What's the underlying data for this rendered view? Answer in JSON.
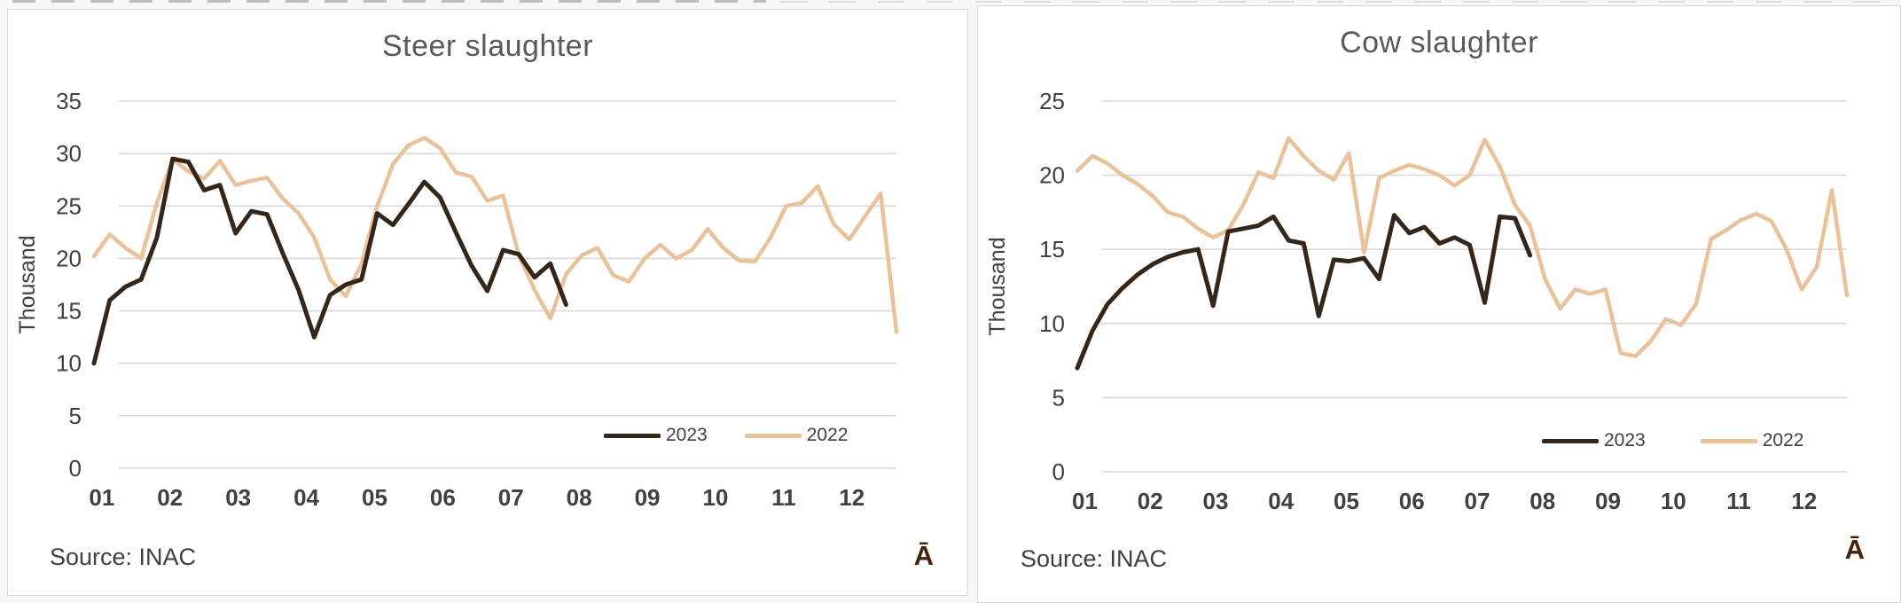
{
  "chart_data": [
    {
      "type": "line",
      "title": "Steer slaughter",
      "ylabel": "Thousand",
      "source": "Source: INAC",
      "watermark": "Ā",
      "ylim": [
        0,
        35
      ],
      "y_ticks": [
        0,
        5,
        10,
        15,
        20,
        25,
        30,
        35
      ],
      "x_tick_labels": [
        "01",
        "02",
        "03",
        "04",
        "05",
        "06",
        "07",
        "08",
        "09",
        "10",
        "11",
        "12"
      ],
      "weeks_total": 52,
      "grid": true,
      "legend_position": "bottom-right-inside",
      "colors": {
        "grid": "#d9d9d9",
        "axis_text": "#404040",
        "title_text": "#595959"
      },
      "series": [
        {
          "name": "2023",
          "color": "#342619",
          "width": 5,
          "values": [
            10.0,
            16.0,
            17.3,
            18.0,
            22.0,
            29.5,
            29.2,
            26.5,
            27.0,
            22.4,
            24.5,
            24.2,
            20.5,
            17.0,
            12.5,
            16.5,
            17.5,
            18.0,
            24.3,
            23.2,
            25.2,
            27.3,
            25.8,
            22.5,
            19.3,
            16.9,
            20.8,
            20.4,
            18.2,
            19.5,
            15.6
          ]
        },
        {
          "name": "2022",
          "color": "#eac299",
          "width": 4.5,
          "values": [
            20.2,
            22.3,
            21.0,
            20.0,
            25.3,
            29.4,
            28.3,
            27.6,
            29.3,
            27.0,
            27.4,
            27.7,
            25.7,
            24.3,
            22.0,
            18.0,
            16.4,
            19.5,
            25.0,
            29.0,
            30.8,
            31.5,
            30.5,
            28.2,
            27.8,
            25.5,
            26.0,
            20.3,
            17.0,
            14.3,
            18.5,
            20.3,
            21.0,
            18.4,
            17.8,
            20.0,
            21.3,
            20.0,
            20.8,
            22.8,
            21.0,
            19.8,
            19.7,
            22.0,
            25.0,
            25.3,
            26.9,
            23.3,
            21.8,
            24.0,
            26.2,
            13.0
          ]
        }
      ]
    },
    {
      "type": "line",
      "title": "Cow slaughter",
      "ylabel": "Thousand",
      "source": "Source: INAC",
      "watermark": "Ā",
      "ylim": [
        0,
        25
      ],
      "y_ticks": [
        0,
        5,
        10,
        15,
        20,
        25
      ],
      "x_tick_labels": [
        "01",
        "02",
        "03",
        "04",
        "05",
        "06",
        "07",
        "08",
        "09",
        "10",
        "11",
        "12"
      ],
      "weeks_total": 52,
      "grid": true,
      "legend_position": "bottom-right-inside",
      "colors": {
        "grid": "#d9d9d9",
        "axis_text": "#404040",
        "title_text": "#595959"
      },
      "series": [
        {
          "name": "2023",
          "color": "#342619",
          "width": 5,
          "values": [
            7.0,
            9.5,
            11.3,
            12.4,
            13.3,
            14.0,
            14.5,
            14.8,
            15.0,
            11.2,
            16.2,
            16.4,
            16.6,
            17.2,
            15.6,
            15.4,
            10.5,
            14.3,
            14.2,
            14.4,
            13.0,
            17.3,
            16.1,
            16.5,
            15.4,
            15.8,
            15.3,
            11.4,
            17.2,
            17.1,
            14.6
          ]
        },
        {
          "name": "2022",
          "color": "#eac299",
          "width": 4.5,
          "values": [
            20.3,
            21.3,
            20.8,
            20.0,
            19.4,
            18.6,
            17.5,
            17.2,
            16.4,
            15.8,
            16.3,
            18.0,
            20.2,
            19.8,
            22.5,
            21.3,
            20.3,
            19.7,
            21.5,
            14.8,
            19.8,
            20.3,
            20.7,
            20.4,
            20.0,
            19.3,
            20.0,
            22.4,
            20.6,
            18.0,
            16.6,
            13.0,
            11.0,
            12.3,
            12.0,
            12.3,
            8.0,
            7.8,
            8.8,
            10.3,
            9.9,
            11.3,
            15.7,
            16.3,
            17.0,
            17.4,
            16.9,
            15.0,
            12.3,
            13.8,
            19.0,
            11.9
          ]
        }
      ]
    }
  ]
}
